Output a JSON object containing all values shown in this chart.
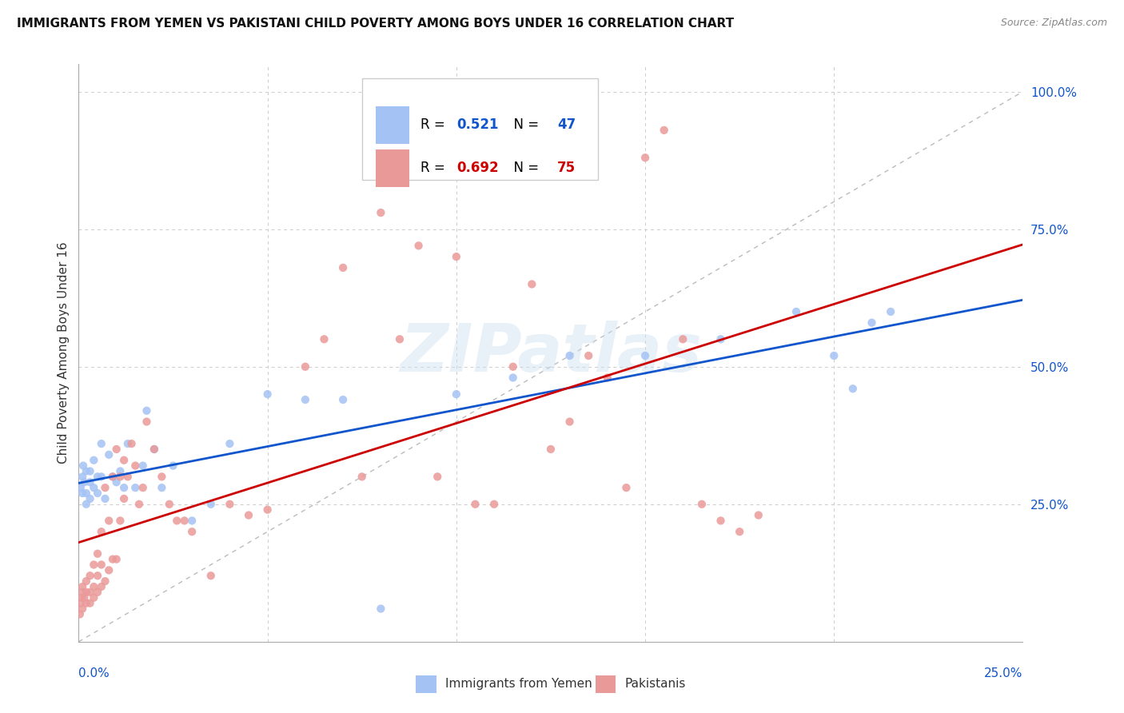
{
  "title": "IMMIGRANTS FROM YEMEN VS PAKISTANI CHILD POVERTY AMONG BOYS UNDER 16 CORRELATION CHART",
  "source": "Source: ZipAtlas.com",
  "ylabel": "Child Poverty Among Boys Under 16",
  "xlim": [
    0.0,
    0.25
  ],
  "ylim": [
    0.0,
    1.05
  ],
  "series1_color": "#a4c2f4",
  "series2_color": "#ea9999",
  "trend1_color": "#1155cc",
  "trend2_color": "#cc0000",
  "diag_line_color": "#bbbbbb",
  "blue_label_color": "#1155cc",
  "pink_label_color": "#cc0000",
  "grid_color": "#cccccc",
  "series1_label": "Immigrants from Yemen",
  "series2_label": "Pakistanis",
  "R1": "0.521",
  "N1": "47",
  "R2": "0.692",
  "N2": "75",
  "series1_x": [
    0.0005,
    0.001,
    0.001,
    0.0012,
    0.0015,
    0.002,
    0.002,
    0.002,
    0.003,
    0.003,
    0.003,
    0.004,
    0.004,
    0.005,
    0.005,
    0.006,
    0.006,
    0.007,
    0.008,
    0.009,
    0.01,
    0.011,
    0.012,
    0.013,
    0.015,
    0.017,
    0.018,
    0.02,
    0.022,
    0.025,
    0.03,
    0.035,
    0.04,
    0.05,
    0.06,
    0.07,
    0.08,
    0.1,
    0.115,
    0.13,
    0.15,
    0.17,
    0.19,
    0.2,
    0.205,
    0.21,
    0.215
  ],
  "series1_y": [
    0.28,
    0.3,
    0.27,
    0.32,
    0.29,
    0.31,
    0.27,
    0.25,
    0.29,
    0.26,
    0.31,
    0.28,
    0.33,
    0.3,
    0.27,
    0.3,
    0.36,
    0.26,
    0.34,
    0.3,
    0.29,
    0.31,
    0.28,
    0.36,
    0.28,
    0.32,
    0.42,
    0.35,
    0.28,
    0.32,
    0.22,
    0.25,
    0.36,
    0.45,
    0.44,
    0.44,
    0.06,
    0.45,
    0.48,
    0.52,
    0.52,
    0.55,
    0.6,
    0.52,
    0.46,
    0.58,
    0.6
  ],
  "series2_x": [
    0.0003,
    0.0005,
    0.0008,
    0.001,
    0.001,
    0.001,
    0.0015,
    0.002,
    0.002,
    0.002,
    0.003,
    0.003,
    0.003,
    0.004,
    0.004,
    0.004,
    0.005,
    0.005,
    0.005,
    0.006,
    0.006,
    0.006,
    0.007,
    0.007,
    0.008,
    0.008,
    0.009,
    0.009,
    0.01,
    0.01,
    0.011,
    0.011,
    0.012,
    0.012,
    0.013,
    0.014,
    0.015,
    0.016,
    0.017,
    0.018,
    0.02,
    0.022,
    0.024,
    0.026,
    0.028,
    0.03,
    0.035,
    0.04,
    0.045,
    0.05,
    0.06,
    0.065,
    0.07,
    0.075,
    0.08,
    0.085,
    0.09,
    0.095,
    0.1,
    0.105,
    0.11,
    0.115,
    0.12,
    0.125,
    0.13,
    0.135,
    0.14,
    0.145,
    0.15,
    0.155,
    0.16,
    0.165,
    0.17,
    0.175,
    0.18
  ],
  "series2_y": [
    0.05,
    0.07,
    0.08,
    0.06,
    0.09,
    0.1,
    0.08,
    0.07,
    0.09,
    0.11,
    0.07,
    0.09,
    0.12,
    0.08,
    0.1,
    0.14,
    0.09,
    0.12,
    0.16,
    0.1,
    0.14,
    0.2,
    0.11,
    0.28,
    0.13,
    0.22,
    0.15,
    0.3,
    0.15,
    0.35,
    0.22,
    0.3,
    0.26,
    0.33,
    0.3,
    0.36,
    0.32,
    0.25,
    0.28,
    0.4,
    0.35,
    0.3,
    0.25,
    0.22,
    0.22,
    0.2,
    0.12,
    0.25,
    0.23,
    0.24,
    0.5,
    0.55,
    0.68,
    0.3,
    0.78,
    0.55,
    0.72,
    0.3,
    0.7,
    0.25,
    0.25,
    0.5,
    0.65,
    0.35,
    0.4,
    0.52,
    0.48,
    0.28,
    0.88,
    0.93,
    0.55,
    0.25,
    0.22,
    0.2,
    0.23
  ]
}
